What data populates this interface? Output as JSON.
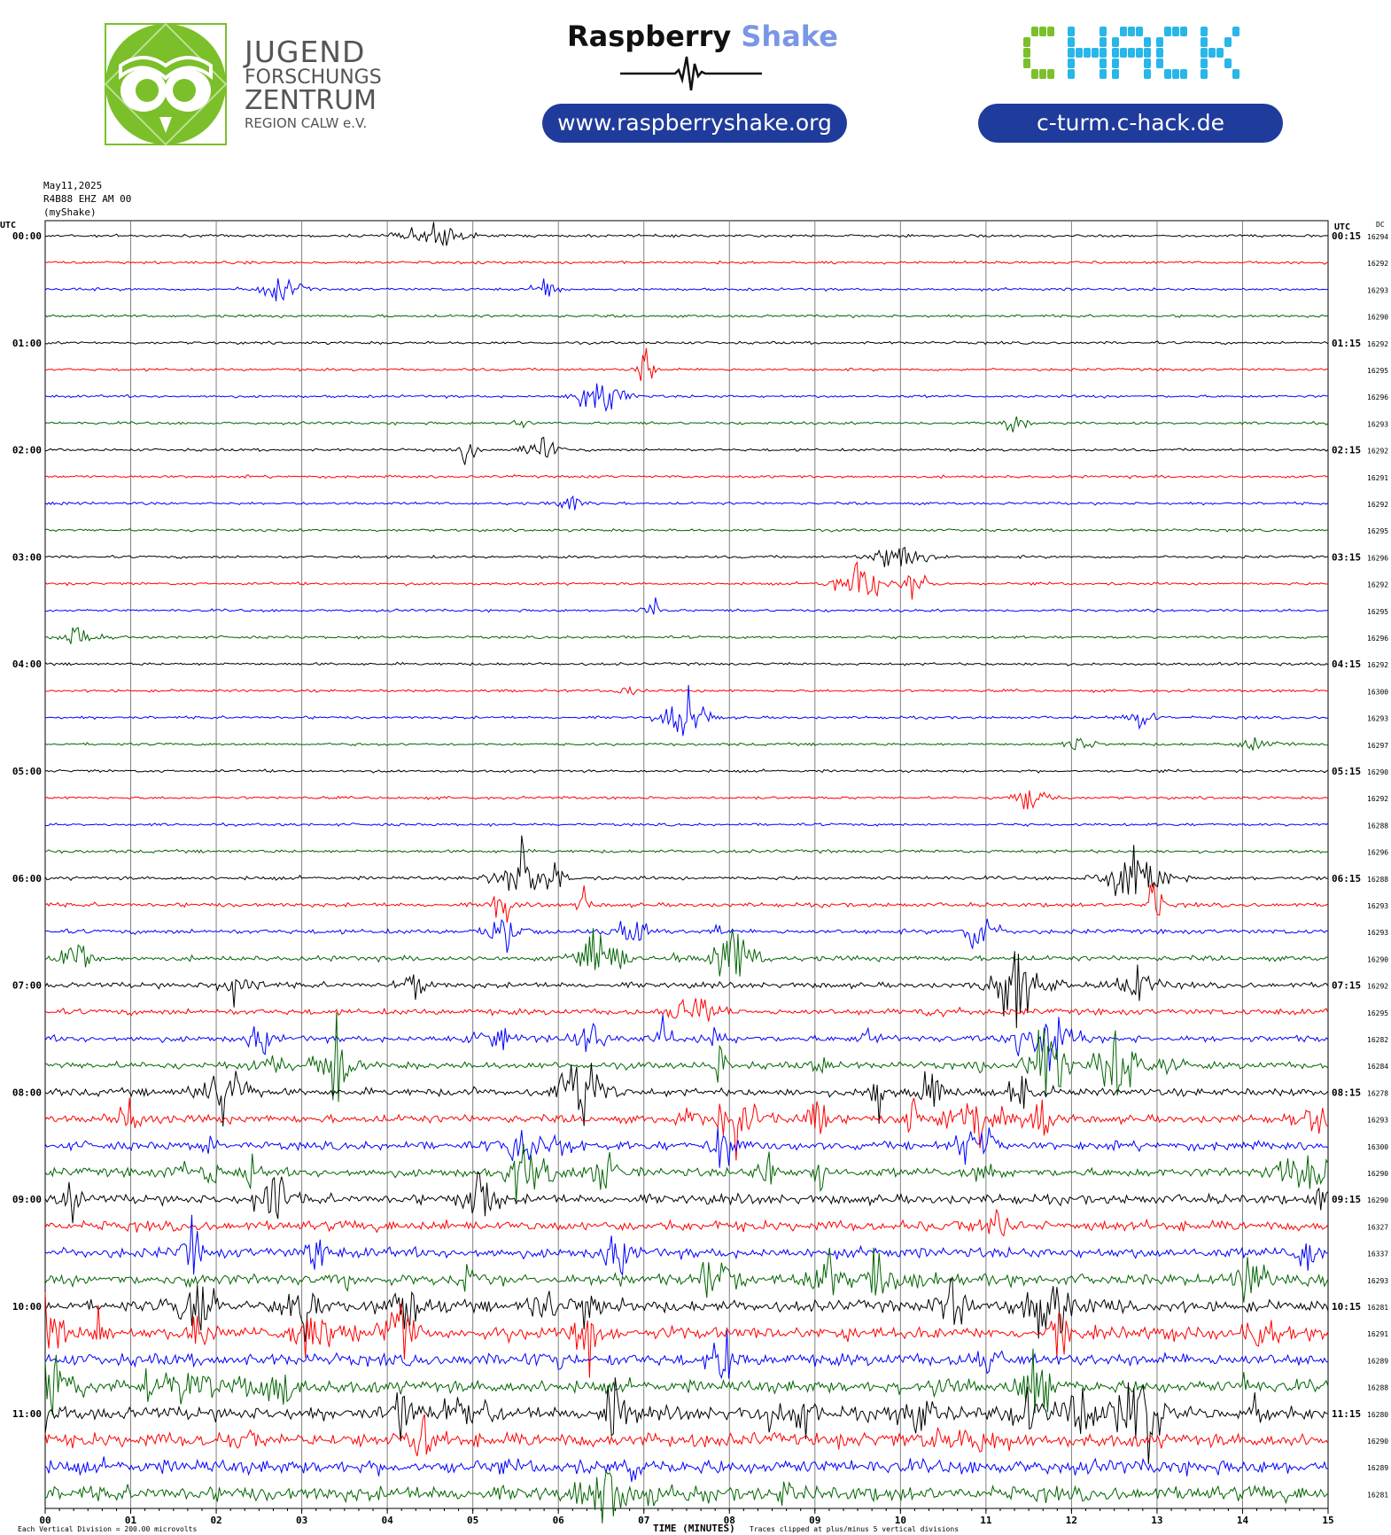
{
  "logos": {
    "jfz": {
      "line1": "JUGEND",
      "line2": "FORSCHUNGS",
      "line3": "ZENTRUM",
      "line4": "REGION CALW e.V.",
      "icon": "owl-logo-icon",
      "color": "#7bbf2a"
    },
    "raspberry_shake": {
      "word1": "Raspberry",
      "word2": "Shake",
      "url": "www.raspberryshake.org",
      "icon": "seismograph-wave-icon"
    },
    "chack": {
      "text": "CHACK",
      "url": "c-turm.c-hack.de",
      "color_green": "#7bbf2a",
      "color_cyan": "#29b6e8"
    }
  },
  "header": {
    "date": "May11,2025",
    "station": "R4B88 EHZ AM 00",
    "source": "(myShake)"
  },
  "chart_data": {
    "type": "line",
    "title": "",
    "left_label": "UTC",
    "right_label": "UTC",
    "dc_label": "DC",
    "xlabel": "TIME (MINUTES)",
    "xlim": [
      0,
      15
    ],
    "x_ticks": [
      "00",
      "01",
      "02",
      "03",
      "04",
      "05",
      "06",
      "07",
      "08",
      "09",
      "10",
      "11",
      "12",
      "13",
      "14",
      "15"
    ],
    "left_hour_labels": [
      "00:00",
      "01:00",
      "02:00",
      "03:00",
      "04:00",
      "05:00",
      "06:00",
      "07:00",
      "08:00",
      "09:00",
      "10:00",
      "11:00"
    ],
    "right_hour_labels": [
      "00:15",
      "01:15",
      "02:15",
      "03:15",
      "04:15",
      "05:15",
      "06:15",
      "07:15",
      "08:15",
      "09:15",
      "10:15",
      "11:15"
    ],
    "dc_values": [
      "16294",
      "16292",
      "16293",
      "16290",
      "16292",
      "16295",
      "16296",
      "16293",
      "16292",
      "16291",
      "16292",
      "16295",
      "16296",
      "16292",
      "16295",
      "16296",
      "16292",
      "16300",
      "16293",
      "16297",
      "16290",
      "16292",
      "16288",
      "16296",
      "16288",
      "16293",
      "16293",
      "16290",
      "16292",
      "16295",
      "16282",
      "16284",
      "16278",
      "16293",
      "16300",
      "16290",
      "16290",
      "16327",
      "16337",
      "16293",
      "16281",
      "16291",
      "16289",
      "16288",
      "16280",
      "16290",
      "16289",
      "16281"
    ],
    "trace_colors": [
      "#000000",
      "#ff0000",
      "#0000ff",
      "#006400"
    ],
    "traces_per_hour": 4,
    "minutes_per_trace": 15,
    "footer_scale": "Each Vertical Division =  200.00 microvolts",
    "footer_clip": "Traces clipped at plus/minus 5 vertical divisions"
  }
}
